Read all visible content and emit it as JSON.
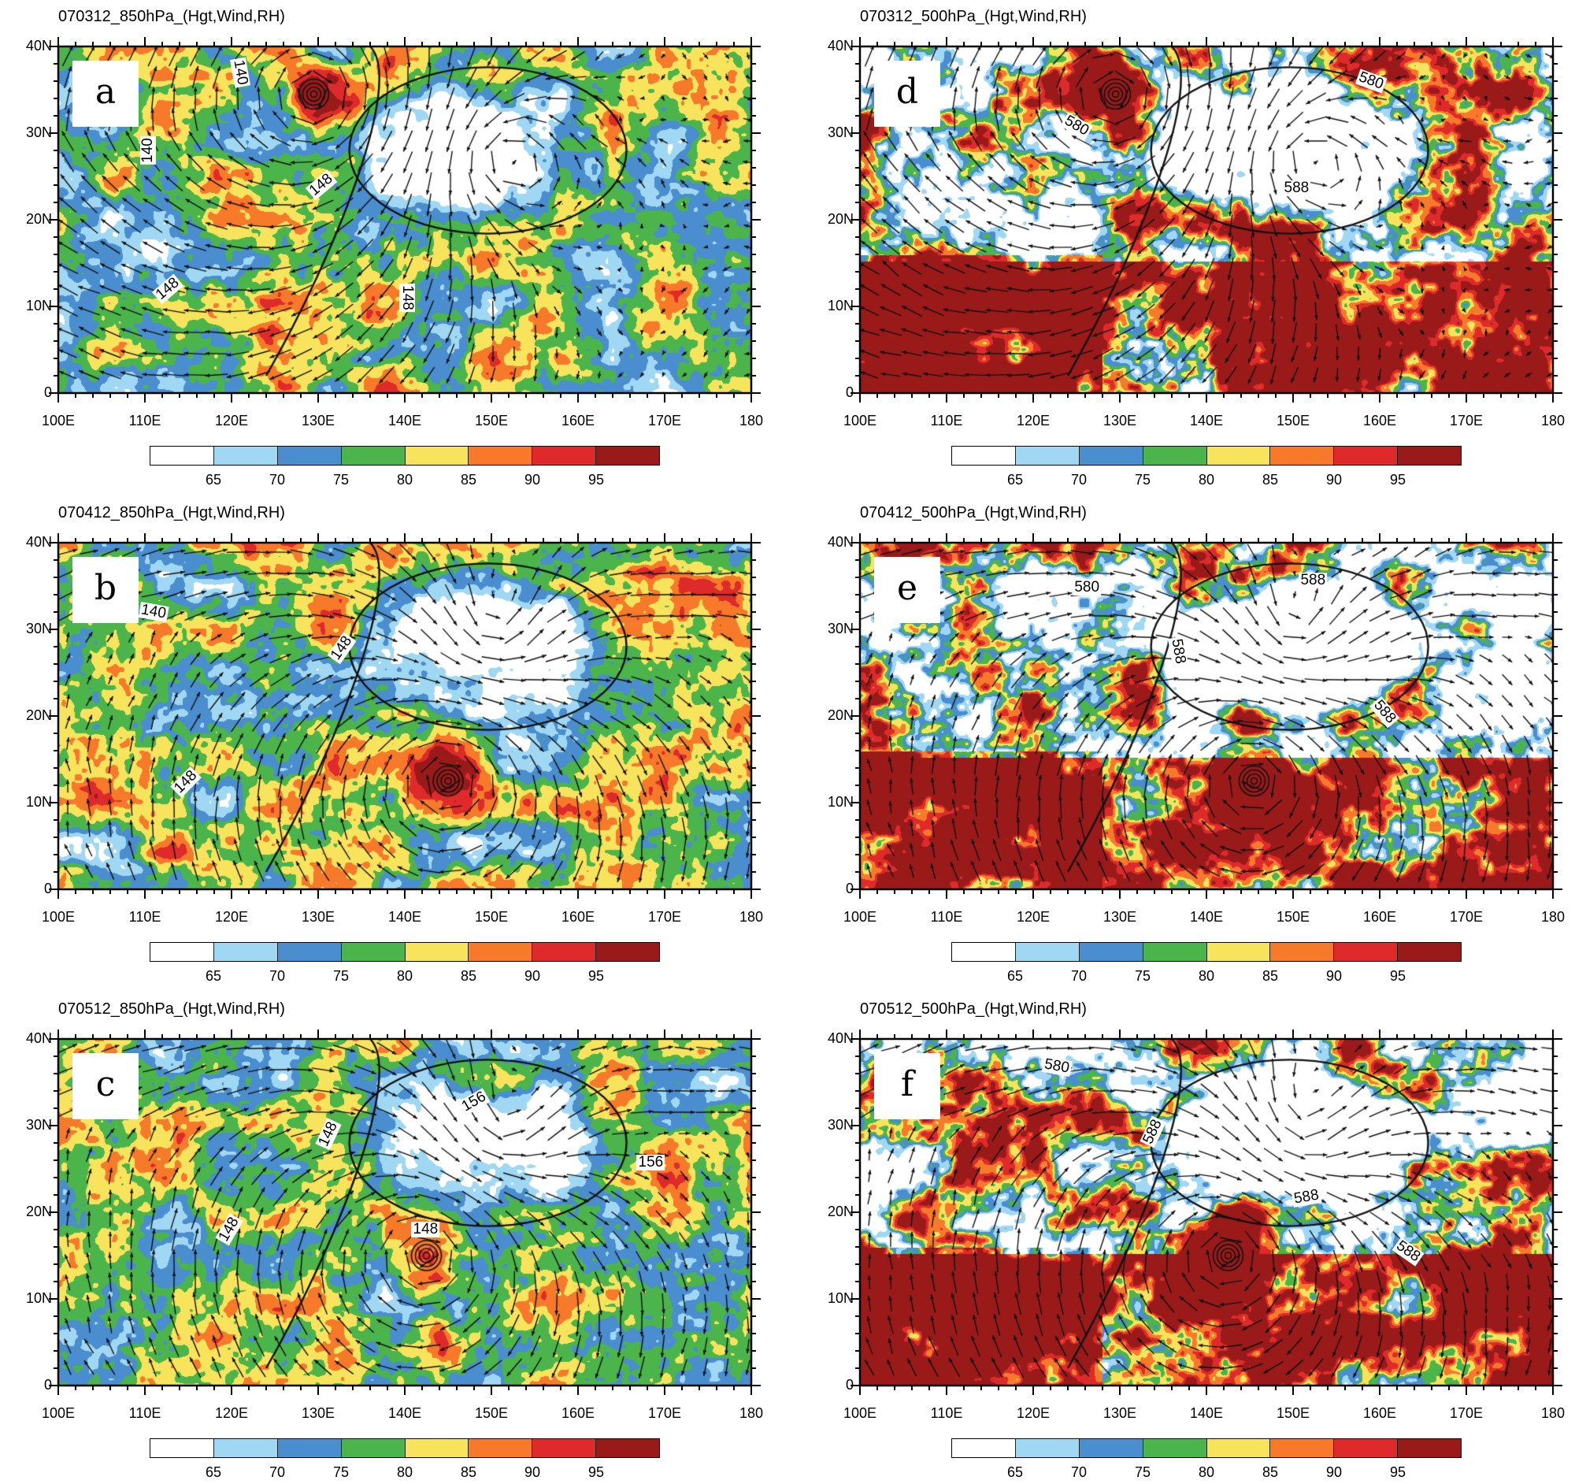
{
  "panels": [
    {
      "id": "a",
      "letter": "a",
      "title": "070312_850hPa_(Hgt,Wind,RH)",
      "level": "850",
      "contour_labels": [
        "140",
        "140",
        "148",
        "148",
        "148"
      ]
    },
    {
      "id": "d",
      "letter": "d",
      "title": "070312_500hPa_(Hgt,Wind,RH)",
      "level": "500",
      "contour_labels": [
        "580",
        "580",
        "588"
      ]
    },
    {
      "id": "b",
      "letter": "b",
      "title": "070412_850hPa_(Hgt,Wind,RH)",
      "level": "850",
      "contour_labels": [
        "140",
        "148",
        "148"
      ]
    },
    {
      "id": "e",
      "letter": "e",
      "title": "070412_500hPa_(Hgt,Wind,RH)",
      "level": "500",
      "contour_labels": [
        "580",
        "588",
        "588",
        "588"
      ]
    },
    {
      "id": "c",
      "letter": "c",
      "title": "070512_850hPa_(Hgt,Wind,RH)",
      "level": "850",
      "contour_labels": [
        "156",
        "156",
        "148",
        "148",
        "148"
      ]
    },
    {
      "id": "f",
      "letter": "f",
      "title": "070512_500hPa_(Hgt,Wind,RH)",
      "level": "500",
      "contour_labels": [
        "580",
        "588",
        "588",
        "588"
      ]
    }
  ],
  "axes": {
    "lat_ticks": [
      "40N",
      "30N",
      "20N",
      "10N",
      "0"
    ],
    "lon_ticks": [
      "100E",
      "110E",
      "120E",
      "130E",
      "140E",
      "150E",
      "160E",
      "170E",
      "180"
    ],
    "lat_range": [
      0,
      40
    ],
    "lon_range": [
      100,
      180
    ]
  },
  "colorbar": {
    "labels": [
      "65",
      "70",
      "75",
      "80",
      "85",
      "90",
      "95"
    ],
    "colors": [
      "#ffffff",
      "#a0d8f4",
      "#4a8ecf",
      "#4bb54b",
      "#f8e45c",
      "#f7792a",
      "#de2a2a",
      "#9a1a1a"
    ]
  }
}
